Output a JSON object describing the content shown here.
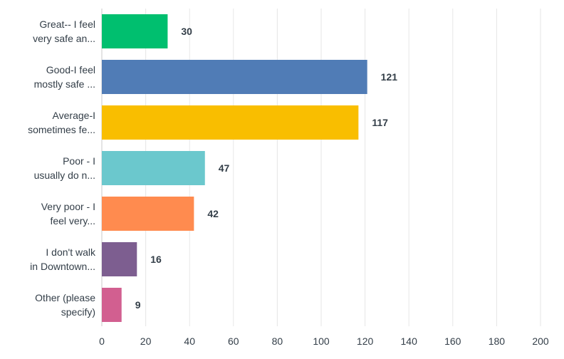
{
  "chart_data": {
    "type": "bar",
    "orientation": "horizontal",
    "categories": [
      [
        "Great-- I feel",
        "very safe an..."
      ],
      [
        "Good-I feel",
        "mostly safe ..."
      ],
      [
        "Average-I",
        "sometimes fe..."
      ],
      [
        "Poor - I",
        "usually do n..."
      ],
      [
        "Very poor - I",
        "feel very..."
      ],
      [
        "I don't walk",
        "in Downtown..."
      ],
      [
        "Other (please",
        "specify)"
      ]
    ],
    "values": [
      30,
      121,
      117,
      47,
      42,
      16,
      9
    ],
    "colors": [
      "#00bf6f",
      "#507cb6",
      "#f9be00",
      "#6bc8cd",
      "#ff8b4f",
      "#7d5e90",
      "#d25f90"
    ],
    "xlim": [
      0,
      200
    ],
    "xticks": [
      0,
      20,
      40,
      60,
      80,
      100,
      120,
      140,
      160,
      180,
      200
    ],
    "grid": true,
    "title": "",
    "xlabel": "",
    "ylabel": ""
  }
}
